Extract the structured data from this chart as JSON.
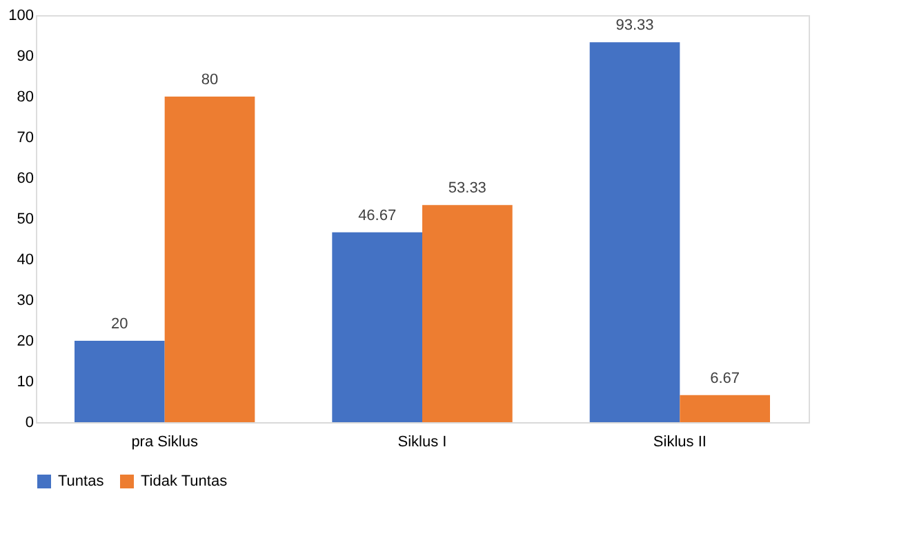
{
  "chart_data": {
    "type": "bar",
    "categories": [
      "pra Siklus",
      "Siklus I",
      "Siklus II"
    ],
    "series": [
      {
        "name": "Tuntas",
        "color": "#4472c4",
        "values": [
          20,
          46.67,
          93.33
        ]
      },
      {
        "name": "Tidak Tuntas",
        "color": "#ed7d31",
        "values": [
          80,
          53.33,
          6.67
        ]
      }
    ],
    "ylim": [
      0,
      100
    ],
    "yticks": [
      0,
      10,
      20,
      30,
      40,
      50,
      60,
      70,
      80,
      90,
      100
    ],
    "data_labels": true,
    "legend": "bottom",
    "grid": false
  }
}
